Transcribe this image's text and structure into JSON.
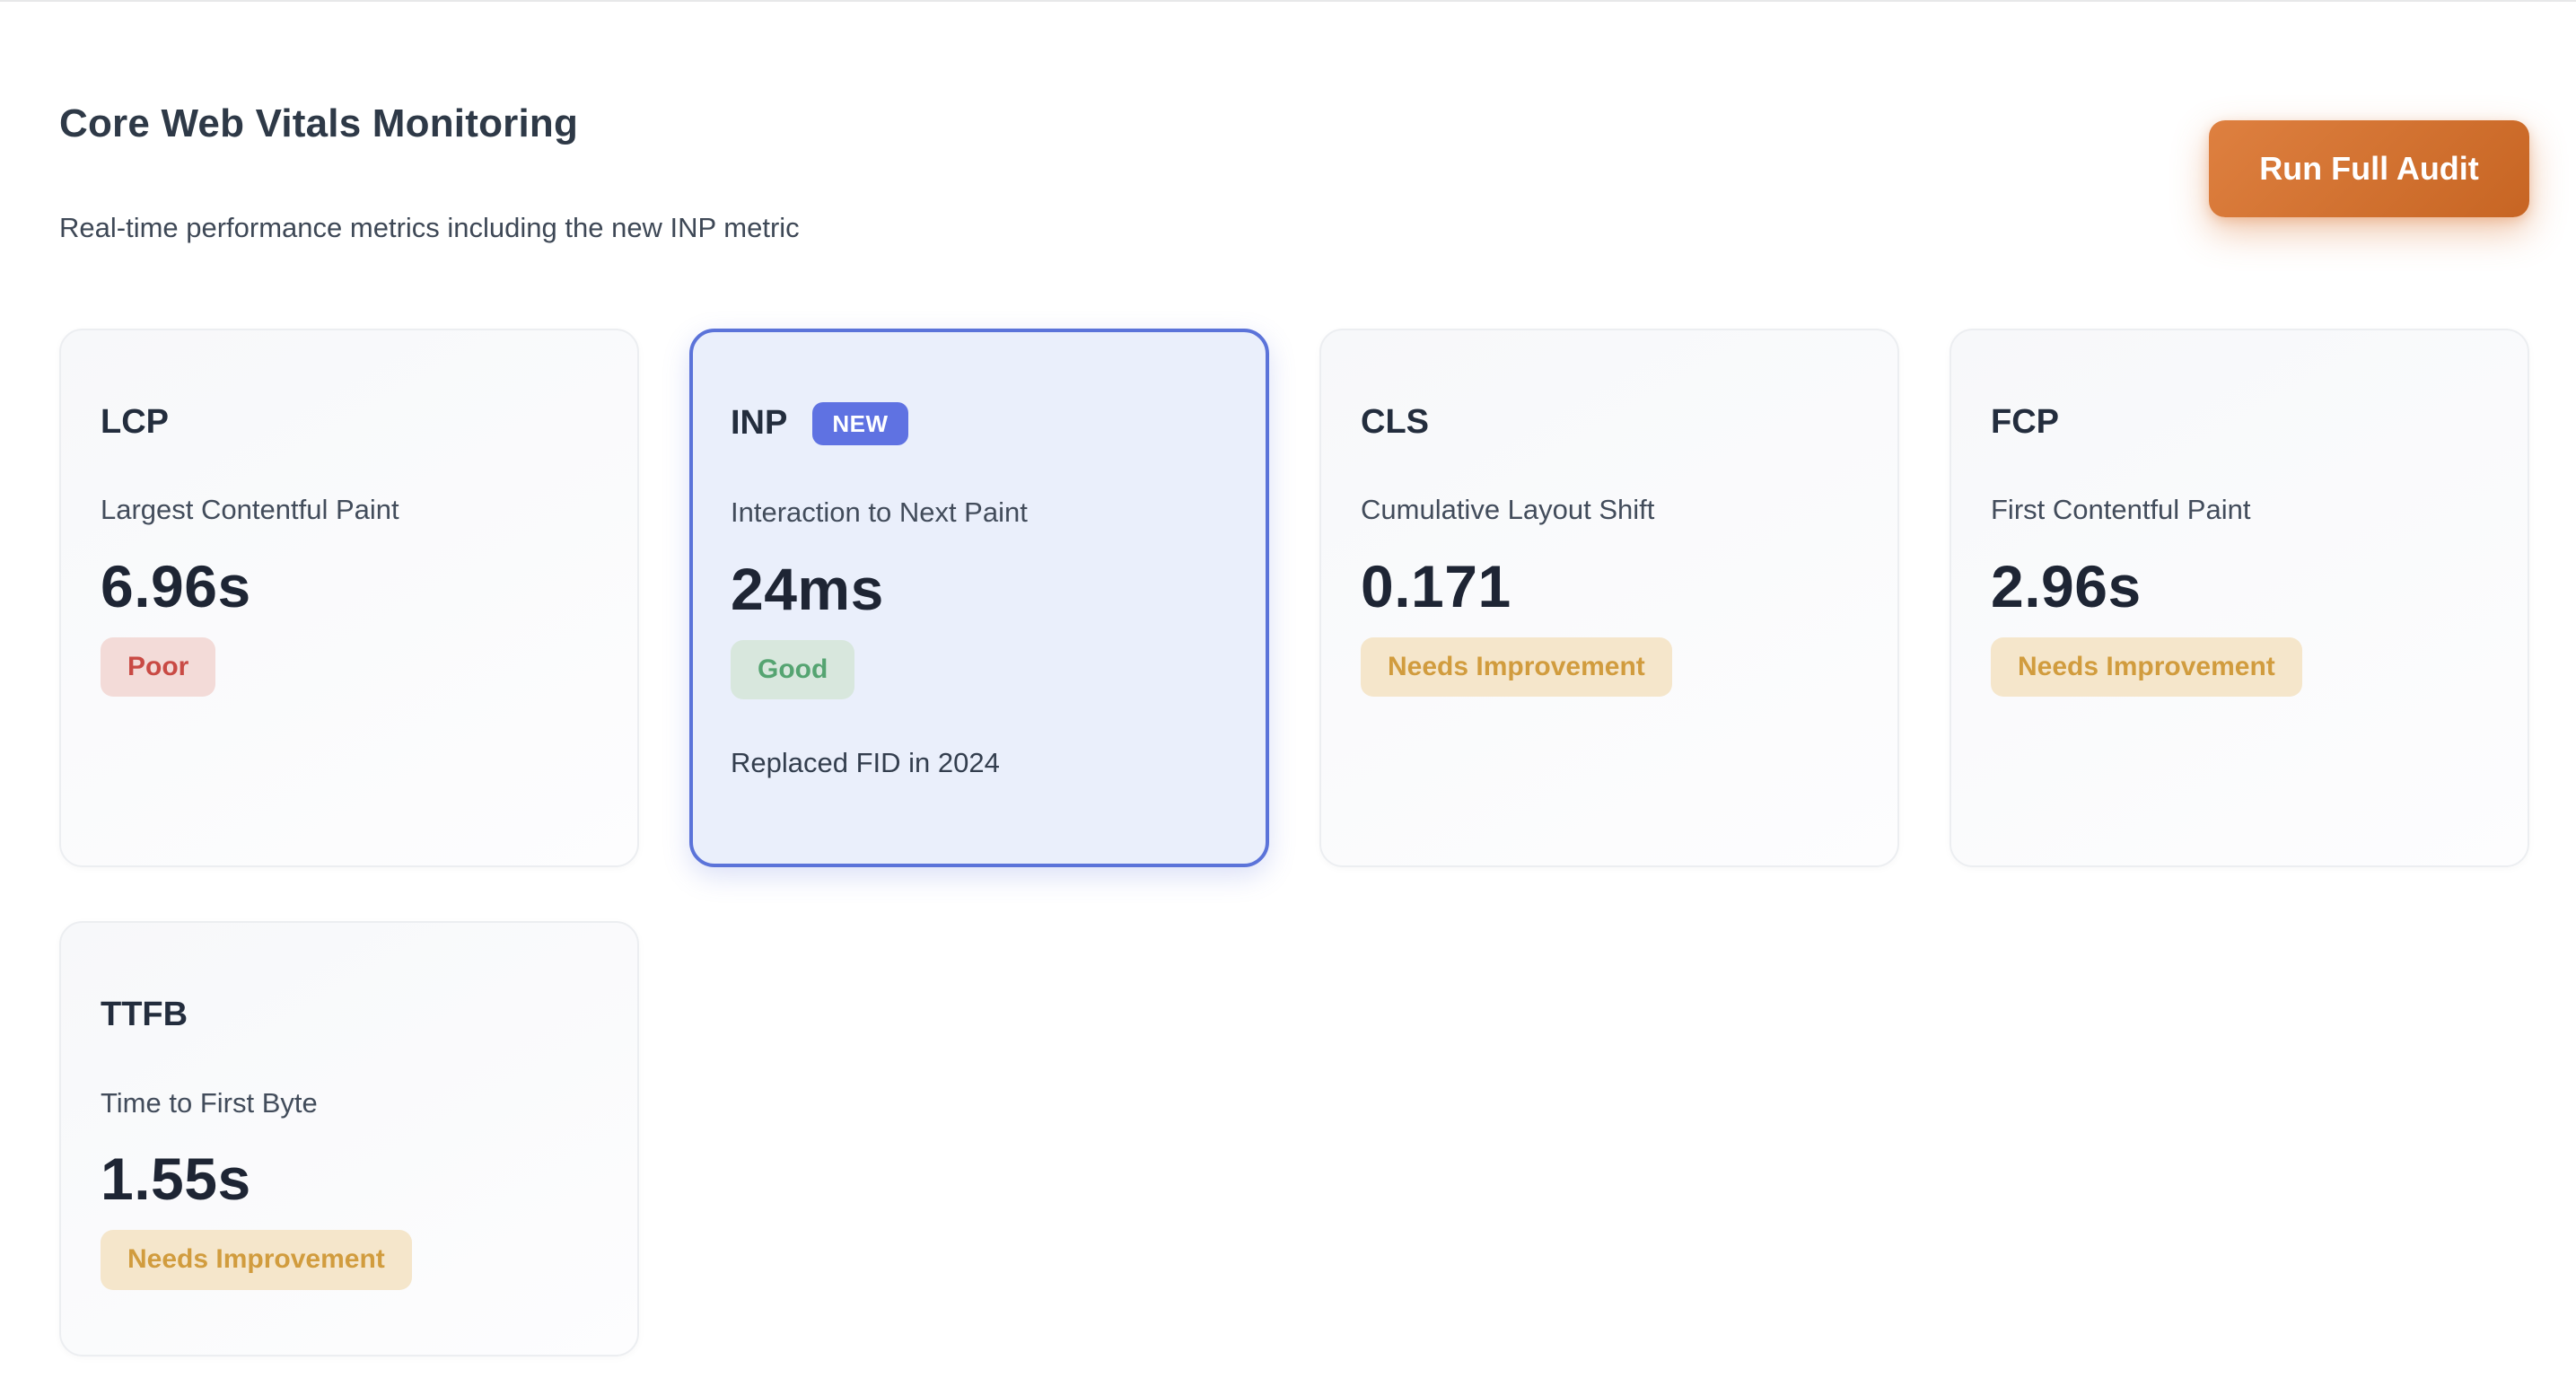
{
  "header": {
    "title": "Core Web Vitals Monitoring",
    "subtitle": "Real-time performance metrics including the new INP metric",
    "run_audit_label": "Run Full Audit"
  },
  "colors": {
    "accent_orange_start": "#de8040",
    "accent_orange_end": "#c76523",
    "indigo_badge": "#5f72e2",
    "highlight_border": "#5b73d9",
    "highlight_bg": "#eaeffb",
    "poor_bg": "#f3dbd8",
    "poor_text": "#c94a44",
    "good_bg": "#d8e7dd",
    "good_text": "#55a471",
    "warn_bg": "#f5e6cb",
    "warn_text": "#d19c3e"
  },
  "cards": [
    {
      "id": "lcp",
      "label": "LCP",
      "description": "Largest Contentful Paint",
      "value": "6.96s",
      "status": "Poor",
      "status_type": "poor",
      "highlighted": false
    },
    {
      "id": "inp",
      "label": "INP",
      "badge": "NEW",
      "description": "Interaction to Next Paint",
      "value": "24ms",
      "status": "Good",
      "status_type": "good",
      "note": "Replaced FID in 2024",
      "highlighted": true
    },
    {
      "id": "cls",
      "label": "CLS",
      "description": "Cumulative Layout Shift",
      "value": "0.171",
      "status": "Needs Improvement",
      "status_type": "needs-improvement",
      "highlighted": false
    },
    {
      "id": "fcp",
      "label": "FCP",
      "description": "First Contentful Paint",
      "value": "2.96s",
      "status": "Needs Improvement",
      "status_type": "needs-improvement",
      "highlighted": false
    },
    {
      "id": "ttfb",
      "label": "TTFB",
      "description": "Time to First Byte",
      "value": "1.55s",
      "status": "Needs Improvement",
      "status_type": "needs-improvement",
      "highlighted": false
    }
  ]
}
